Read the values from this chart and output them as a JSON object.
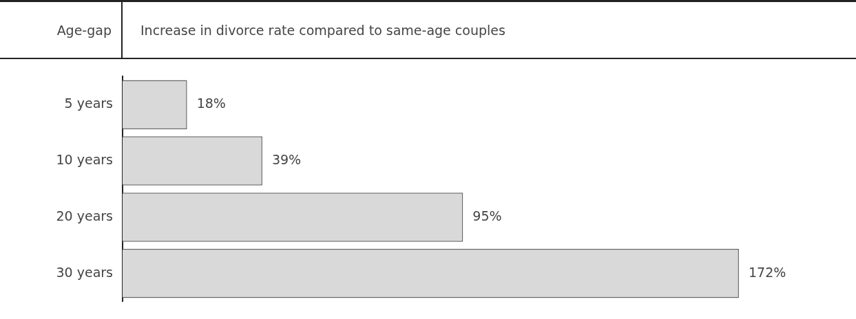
{
  "chart_data": {
    "type": "bar",
    "orientation": "horizontal",
    "ylabel": "Age-gap",
    "xlabel": "Increase in divorce rate compared to same-age couples",
    "categories": [
      "5 years",
      "10 years",
      "20 years",
      "30 years"
    ],
    "values": [
      18,
      39,
      95,
      172
    ],
    "value_labels": [
      "18%",
      "39%",
      "95%",
      "172%"
    ],
    "color": "#d9d9d9",
    "legend": false
  }
}
